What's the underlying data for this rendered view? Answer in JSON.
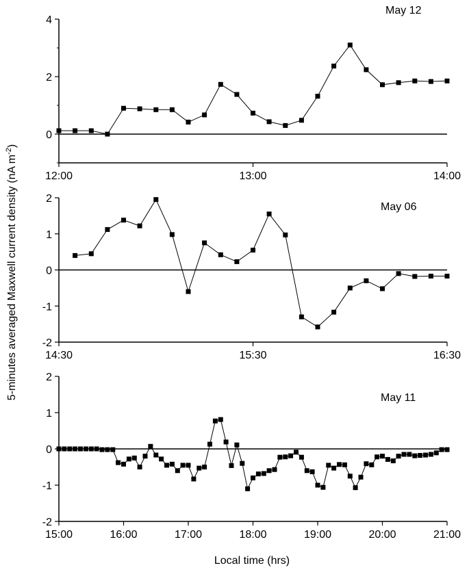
{
  "figure": {
    "ylabel": "5-minutes averaged Maxwell current density (nA m",
    "ylabel_sup": "-2",
    "ylabel_close": ")",
    "xlabel": "Local time (hrs)"
  },
  "chart_data": [
    {
      "type": "line",
      "panel_label": "May 12",
      "ylim": [
        -1,
        4
      ],
      "yticks": [
        0,
        2,
        4
      ],
      "yticks_minor": [
        -1,
        1,
        3
      ],
      "xlim": [
        0,
        120
      ],
      "xticks": [
        {
          "t": 0,
          "label": "12:00"
        },
        {
          "t": 60,
          "label": "13:00"
        },
        {
          "t": 120,
          "label": "14:00"
        }
      ],
      "zero_line": true,
      "series": [
        {
          "x": [
            0,
            5,
            10,
            15,
            20,
            25,
            30,
            35,
            40,
            45,
            50,
            55,
            60,
            65,
            70,
            75,
            80,
            85,
            90,
            95,
            100,
            105,
            110,
            115,
            120
          ],
          "y": [
            0.12,
            0.12,
            0.12,
            0.0,
            0.9,
            0.88,
            0.85,
            0.85,
            0.42,
            0.67,
            1.73,
            1.38,
            0.73,
            0.43,
            0.3,
            0.48,
            1.32,
            2.37,
            3.1,
            2.24,
            1.72,
            1.79,
            1.85,
            1.83,
            1.85
          ]
        }
      ]
    },
    {
      "type": "line",
      "panel_label": "May 06",
      "ylim": [
        -2,
        2
      ],
      "yticks": [
        -2,
        -1,
        0,
        1,
        2
      ],
      "xlim": [
        0,
        120
      ],
      "xticks": [
        {
          "t": 0,
          "label": "14:30"
        },
        {
          "t": 60,
          "label": "15:30"
        },
        {
          "t": 120,
          "label": "16:30"
        }
      ],
      "zero_line": true,
      "series": [
        {
          "x": [
            5,
            10,
            15,
            20,
            25,
            30,
            35,
            40,
            45,
            50,
            55,
            60,
            65,
            70,
            75,
            80,
            85,
            90,
            95,
            100,
            105,
            110,
            115,
            120
          ],
          "y": [
            0.4,
            0.45,
            1.12,
            1.38,
            1.22,
            1.95,
            0.98,
            -0.6,
            0.75,
            0.42,
            0.23,
            0.55,
            1.55,
            0.97,
            -1.3,
            -1.58,
            -1.17,
            -0.5,
            -0.3,
            -0.52,
            -0.1,
            -0.18,
            -0.17,
            -0.17
          ]
        }
      ]
    },
    {
      "type": "line",
      "panel_label": "May 11",
      "ylim": [
        -2,
        2
      ],
      "yticks": [
        -2,
        -1,
        0,
        1,
        2
      ],
      "xlim": [
        0,
        360
      ],
      "xticks": [
        {
          "t": 0,
          "label": "15:00"
        },
        {
          "t": 60,
          "label": "16:00"
        },
        {
          "t": 120,
          "label": "17:00"
        },
        {
          "t": 180,
          "label": "18:00"
        },
        {
          "t": 240,
          "label": "19:00"
        },
        {
          "t": 300,
          "label": "20:00"
        },
        {
          "t": 360,
          "label": "21:00"
        }
      ],
      "zero_line": true,
      "series": [
        {
          "x": [
            0,
            5,
            10,
            15,
            20,
            25,
            30,
            35,
            40,
            45,
            50,
            55,
            60,
            65,
            70,
            75,
            80,
            85,
            90,
            95,
            100,
            105,
            110,
            115,
            120,
            125,
            130,
            135,
            140,
            145,
            150,
            155,
            160,
            165,
            170,
            175,
            180,
            185,
            190,
            195,
            200,
            205,
            210,
            215,
            220,
            225,
            230,
            235,
            240,
            245,
            250,
            255,
            260,
            265,
            270,
            275,
            280,
            285,
            290,
            295,
            300,
            305,
            310,
            315,
            320,
            325,
            330,
            335,
            340,
            345,
            350,
            355,
            360
          ],
          "y": [
            0.0,
            0.0,
            0.0,
            0.0,
            0.0,
            0.0,
            0.0,
            0.0,
            -0.02,
            -0.02,
            -0.02,
            -0.38,
            -0.42,
            -0.28,
            -0.25,
            -0.5,
            -0.2,
            0.07,
            -0.17,
            -0.28,
            -0.45,
            -0.42,
            -0.6,
            -0.45,
            -0.45,
            -0.83,
            -0.53,
            -0.5,
            0.13,
            0.77,
            0.81,
            0.19,
            -0.46,
            0.11,
            -0.4,
            -1.1,
            -0.8,
            -0.69,
            -0.68,
            -0.6,
            -0.57,
            -0.23,
            -0.22,
            -0.19,
            -0.09,
            -0.23,
            -0.6,
            -0.63,
            -1.0,
            -1.06,
            -0.45,
            -0.53,
            -0.43,
            -0.44,
            -0.75,
            -1.07,
            -0.78,
            -0.41,
            -0.44,
            -0.22,
            -0.2,
            -0.29,
            -0.33,
            -0.2,
            -0.15,
            -0.15,
            -0.19,
            -0.18,
            -0.17,
            -0.15,
            -0.11,
            -0.02,
            -0.02
          ]
        }
      ]
    }
  ]
}
